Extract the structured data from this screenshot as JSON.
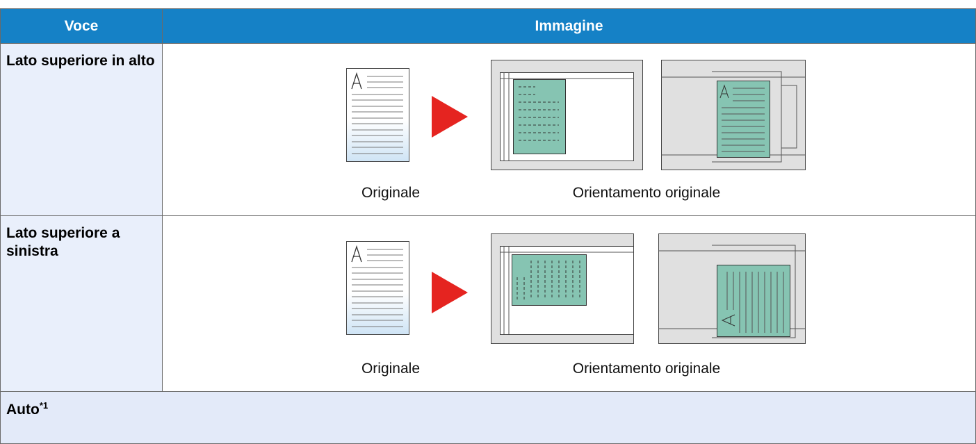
{
  "header": {
    "columns": [
      "Voce",
      "Immagine"
    ]
  },
  "rows": [
    {
      "label": "Lato superiore in alto",
      "captions": [
        "Originale",
        "Orientamento originale"
      ]
    },
    {
      "label": "Lato superiore a sinistra",
      "captions": [
        "Originale",
        "Orientamento originale"
      ]
    }
  ],
  "auto_row": {
    "label": "Auto",
    "note": "*1"
  }
}
